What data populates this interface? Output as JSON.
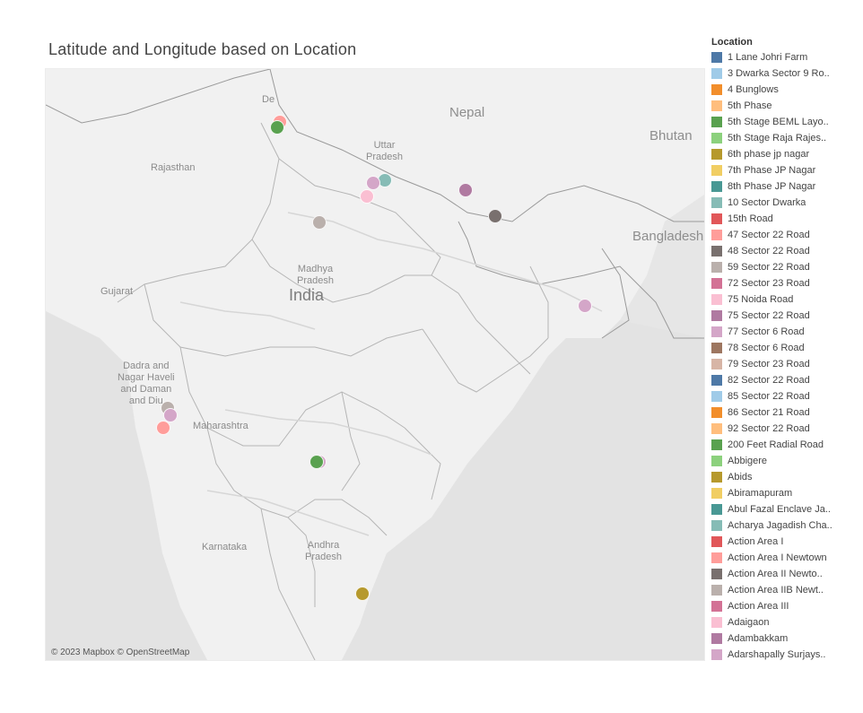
{
  "title": "Latitude and Longitude based on Location",
  "attribution": "© 2023 Mapbox © OpenStreetMap",
  "map_labels": {
    "nepal": "Nepal",
    "bhutan": "Bhutan",
    "bangladesh": "Bangladesh",
    "uttar_pradesh": "Uttar\nPradesh",
    "rajasthan": "Rajasthan",
    "madhya_pradesh": "Madhya\nPradesh",
    "india": "India",
    "gujarat": "Gujarat",
    "dadra": "Dadra and\nNagar Haveli\nand Daman\nand Diu",
    "maharashtra": "Maharashtra",
    "karnataka": "Karnataka",
    "andhra_pradesh": "Andhra\nPradesh",
    "delhi": "De"
  },
  "legend": {
    "title": "Location",
    "items": [
      {
        "label": "1 Lane Johri Farm",
        "color": "#4e79a7"
      },
      {
        "label": "3 Dwarka Sector 9 Ro..",
        "color": "#a0cbe8"
      },
      {
        "label": "4 Bunglows",
        "color": "#f28e2b"
      },
      {
        "label": "5th Phase",
        "color": "#ffbe7d"
      },
      {
        "label": "5th Stage BEML Layo..",
        "color": "#59a14f"
      },
      {
        "label": "5th Stage Raja Rajes..",
        "color": "#8cd17d"
      },
      {
        "label": "6th phase jp nagar",
        "color": "#b6992d"
      },
      {
        "label": "7th Phase JP Nagar",
        "color": "#f1ce63"
      },
      {
        "label": "8th Phase JP Nagar",
        "color": "#499894"
      },
      {
        "label": "10 Sector Dwarka",
        "color": "#86bcb6"
      },
      {
        "label": "15th Road",
        "color": "#e15759"
      },
      {
        "label": "47 Sector 22 Road",
        "color": "#ff9d9a"
      },
      {
        "label": "48 Sector 22 Road",
        "color": "#79706e"
      },
      {
        "label": "59 Sector 22 Road",
        "color": "#bab0ac"
      },
      {
        "label": "72 Sector 23 Road",
        "color": "#d37295"
      },
      {
        "label": "75 Noida Road",
        "color": "#fabfd2"
      },
      {
        "label": "75 Sector 22 Road",
        "color": "#b07aa1"
      },
      {
        "label": "77 Sector 6 Road",
        "color": "#d4a6c8"
      },
      {
        "label": "78 Sector 6 Road",
        "color": "#9d7660"
      },
      {
        "label": "79 Sector 23 Road",
        "color": "#d7b5a6"
      },
      {
        "label": "82 Sector 22 Road",
        "color": "#4e79a7"
      },
      {
        "label": "85 Sector 22 Road",
        "color": "#a0cbe8"
      },
      {
        "label": "86 Sector 21 Road",
        "color": "#f28e2b"
      },
      {
        "label": "92 Sector 22 Road",
        "color": "#ffbe7d"
      },
      {
        "label": "200 Feet Radial Road",
        "color": "#59a14f"
      },
      {
        "label": "Abbigere",
        "color": "#8cd17d"
      },
      {
        "label": "Abids",
        "color": "#b6992d"
      },
      {
        "label": "Abiramapuram",
        "color": "#f1ce63"
      },
      {
        "label": "Abul Fazal Enclave Ja..",
        "color": "#499894"
      },
      {
        "label": "Acharya Jagadish Cha..",
        "color": "#86bcb6"
      },
      {
        "label": "Action Area I",
        "color": "#e15759"
      },
      {
        "label": "Action Area I Newtown",
        "color": "#ff9d9a"
      },
      {
        "label": "Action Area II Newto..",
        "color": "#79706e"
      },
      {
        "label": "Action Area IIB Newt..",
        "color": "#bab0ac"
      },
      {
        "label": "Action Area III",
        "color": "#d37295"
      },
      {
        "label": "Adaigaon",
        "color": "#fabfd2"
      },
      {
        "label": "Adambakkam",
        "color": "#b07aa1"
      },
      {
        "label": "Adarshapally Surjays..",
        "color": "#d4a6c8"
      }
    ]
  },
  "points": [
    {
      "lat": 28.75,
      "lon": 77.15,
      "color": "#ff9d9a"
    },
    {
      "lat": 28.55,
      "lon": 77.05,
      "color": "#59a14f"
    },
    {
      "lat": 26.8,
      "lon": 81.0,
      "color": "#86bcb6"
    },
    {
      "lat": 26.7,
      "lon": 80.6,
      "color": "#d4a6c8"
    },
    {
      "lat": 26.25,
      "lon": 80.35,
      "color": "#fabfd2"
    },
    {
      "lat": 26.45,
      "lon": 84.0,
      "color": "#b07aa1"
    },
    {
      "lat": 25.6,
      "lon": 85.1,
      "color": "#79706e"
    },
    {
      "lat": 25.4,
      "lon": 78.6,
      "color": "#bab0ac"
    },
    {
      "lat": 22.6,
      "lon": 88.4,
      "color": "#d4a6c8"
    },
    {
      "lat": 19.2,
      "lon": 73.0,
      "color": "#bab0ac"
    },
    {
      "lat": 18.95,
      "lon": 73.1,
      "color": "#d4a6c8"
    },
    {
      "lat": 18.55,
      "lon": 72.85,
      "color": "#ff9d9a"
    },
    {
      "lat": 17.4,
      "lon": 78.6,
      "color": "#d4a6c8"
    },
    {
      "lat": 17.4,
      "lon": 78.5,
      "color": "#59a14f"
    },
    {
      "lat": 13.0,
      "lon": 80.2,
      "color": "#b6992d"
    }
  ]
}
